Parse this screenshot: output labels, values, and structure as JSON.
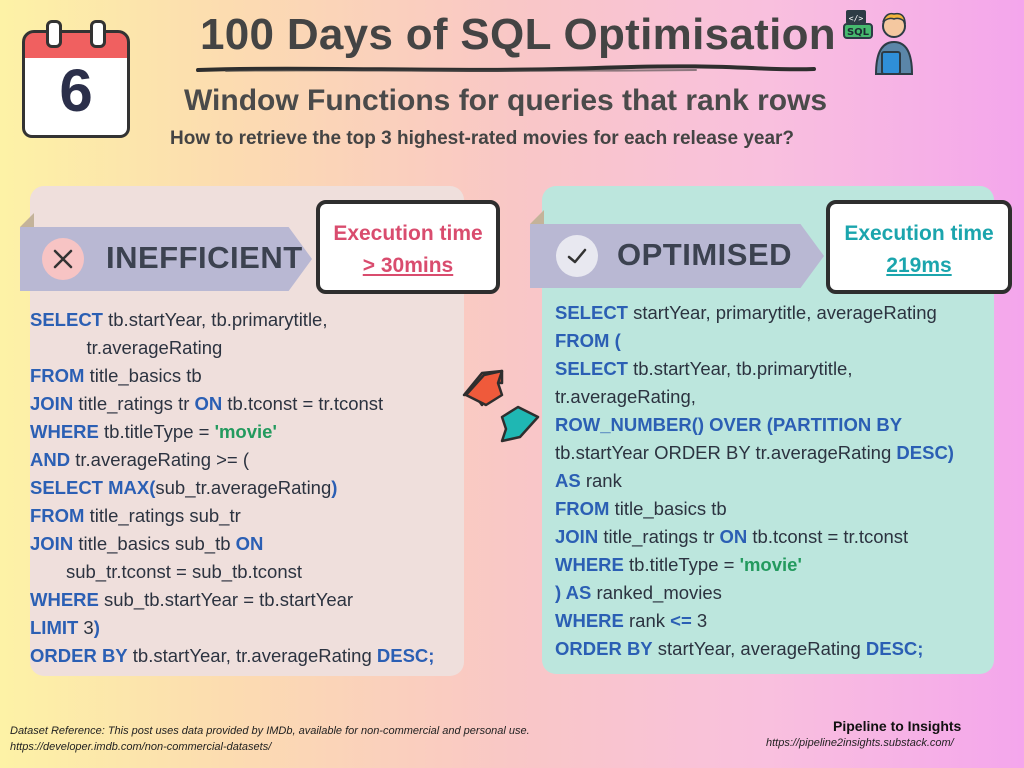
{
  "calendar": {
    "day": "6"
  },
  "header": {
    "title": "100 Days of SQL Optimisation",
    "subtitle": "Window Functions for queries that rank rows",
    "question": "How to retrieve the top 3 highest-rated movies for each release year?"
  },
  "inefficient": {
    "label": "INEFFICIENT",
    "exec_label": "Execution time",
    "exec_value": "> 30mins",
    "code": [
      [
        [
          "k",
          "SELECT"
        ],
        [
          "t",
          " tb.startYear, tb.primarytitle,"
        ]
      ],
      [
        [
          "t",
          "           tr.averageRating"
        ]
      ],
      [
        [
          "k",
          "FROM"
        ],
        [
          "t",
          " title_basics tb"
        ]
      ],
      [
        [
          "k",
          "JOIN"
        ],
        [
          "t",
          " title_ratings tr "
        ],
        [
          "k",
          "ON"
        ],
        [
          "t",
          " tb.tconst = tr.tconst"
        ]
      ],
      [
        [
          "k",
          "WHERE"
        ],
        [
          "t",
          " tb.titleType = "
        ],
        [
          "s",
          "'movie'"
        ]
      ],
      [
        [
          "k",
          "AND"
        ],
        [
          "t",
          " tr.averageRating >= ("
        ]
      ],
      [
        [
          "k",
          "SELECT MAX("
        ],
        [
          "t",
          "sub_tr.averageRating"
        ],
        [
          "k",
          ")"
        ]
      ],
      [
        [
          "k",
          "FROM"
        ],
        [
          "t",
          " title_ratings sub_tr"
        ]
      ],
      [
        [
          "k",
          "JOIN"
        ],
        [
          "t",
          " title_basics sub_tb "
        ],
        [
          "k",
          "ON"
        ]
      ],
      [
        [
          "t",
          "       sub_tr.tconst = sub_tb.tconst"
        ]
      ],
      [
        [
          "k",
          "WHERE"
        ],
        [
          "t",
          " sub_tb.startYear = tb.startYear"
        ]
      ],
      [
        [
          "k",
          "LIMIT"
        ],
        [
          "t",
          " 3"
        ],
        [
          "k",
          ")"
        ]
      ],
      [
        [
          "k",
          "ORDER BY"
        ],
        [
          "t",
          " tb.startYear, tr.averageRating "
        ],
        [
          "k",
          "DESC;"
        ]
      ]
    ]
  },
  "optimised": {
    "label": "OPTIMISED",
    "exec_label": "Execution time",
    "exec_value": "219ms",
    "code": [
      [
        [
          "k",
          "SELECT"
        ],
        [
          "t",
          " startYear, primarytitle, averageRating"
        ]
      ],
      [
        [
          "k",
          "FROM ("
        ]
      ],
      [
        [
          "k",
          "SELECT"
        ],
        [
          "t",
          " tb.startYear, tb.primarytitle,"
        ]
      ],
      [
        [
          "t",
          "tr.averageRating,"
        ]
      ],
      [
        [
          "k",
          "ROW_NUMBER() OVER (PARTITION BY"
        ]
      ],
      [
        [
          "t",
          "tb.startYear ORDER BY tr.averageRating "
        ],
        [
          "k",
          "DESC)"
        ]
      ],
      [
        [
          "k",
          "AS"
        ],
        [
          "t",
          " rank"
        ]
      ],
      [
        [
          "k",
          "FROM"
        ],
        [
          "t",
          " title_basics tb"
        ]
      ],
      [
        [
          "k",
          "JOIN"
        ],
        [
          "t",
          " title_ratings tr "
        ],
        [
          "k",
          "ON"
        ],
        [
          "t",
          " tb.tconst = tr.tconst"
        ]
      ],
      [
        [
          "k",
          "WHERE"
        ],
        [
          "t",
          " tb.titleType = "
        ],
        [
          "s",
          "'movie'"
        ]
      ],
      [
        [
          "k",
          ") AS"
        ],
        [
          "t",
          " ranked_movies"
        ]
      ],
      [
        [
          "k",
          "WHERE"
        ],
        [
          "t",
          " rank "
        ],
        [
          "k",
          "<="
        ],
        [
          "t",
          " 3"
        ]
      ],
      [
        [
          "k",
          "ORDER BY"
        ],
        [
          "t",
          " startYear, averageRating "
        ],
        [
          "k",
          "DESC;"
        ]
      ]
    ]
  },
  "footer": {
    "dataset_note": "Dataset Reference: This post uses data provided by IMDb, available for non-commercial and personal use.",
    "dataset_url": "https://developer.imdb.com/non-commercial-datasets/",
    "brand": "Pipeline to Insights",
    "brand_url": "https://pipeline2insights.substack.com/"
  },
  "icons": {
    "calendar": "calendar-icon",
    "developer": "developer-sql-icon",
    "inefficient": "x-mark-icon",
    "optimised": "check-mark-icon",
    "exchange": "exchange-arrows-icon",
    "sql_badge": "SQL",
    "code_badge": "</>"
  },
  "colors": {
    "keyword": "#2b5fb4",
    "string": "#239a5e",
    "inefficient_accent": "#d94c6e",
    "optimised_accent": "#1ba5ad"
  }
}
